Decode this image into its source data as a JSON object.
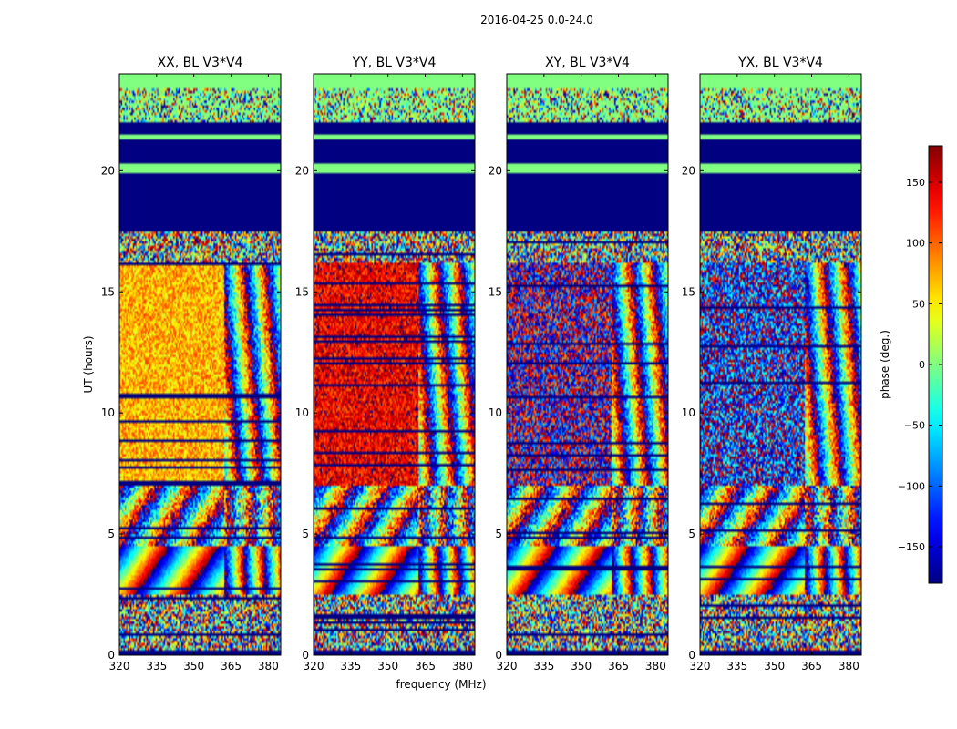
{
  "chart_data": {
    "type": "heatmap",
    "suptitle": "2016-04-25 0.0-24.0",
    "xlabel": "frequency (MHz)",
    "ylabel": "UT (hours)",
    "xlim": [
      320,
      385
    ],
    "ylim": [
      0,
      24
    ],
    "xticks": [
      320,
      335,
      350,
      365,
      380
    ],
    "yticks": [
      0,
      5,
      10,
      15,
      20
    ],
    "colorbar": {
      "label": "phase (deg.)",
      "range": [
        -180,
        180
      ],
      "ticks": [
        -150,
        -100,
        -50,
        0,
        50,
        100,
        150
      ],
      "colormap": "jet"
    },
    "panels": [
      {
        "title": "XX, BL V3*V4",
        "mean_phase_low_freq_deg": 70
      },
      {
        "title": "YY, BL V3*V4",
        "mean_phase_low_freq_deg": 140
      },
      {
        "title": "XY, BL V3*V4",
        "mean_phase_low_freq_deg": -170
      },
      {
        "title": "YX, BL V3*V4",
        "mean_phase_low_freq_deg": -130
      }
    ],
    "time_segments_hours": [
      {
        "from": 0.0,
        "to": 2.5,
        "kind": "noise"
      },
      {
        "from": 2.5,
        "to": 4.5,
        "kind": "strong fringes"
      },
      {
        "from": 4.5,
        "to": 7.0,
        "kind": "weak fringes"
      },
      {
        "from": 7.0,
        "to": 16.2,
        "kind": "source"
      },
      {
        "from": 17.5,
        "to": 22.0,
        "kind": "flagged"
      },
      {
        "from": 23.3,
        "to": 24.0,
        "kind": "flagged zero"
      }
    ]
  }
}
